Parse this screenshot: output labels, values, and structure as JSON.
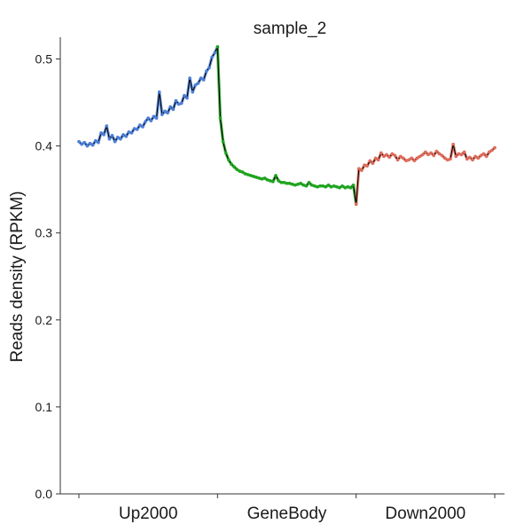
{
  "chart_data": {
    "type": "line",
    "title": "sample_2",
    "ylabel": "Reads density (RPKM)",
    "xlabel": "",
    "ylim": [
      0,
      0.5
    ],
    "yticks": [
      0.0,
      0.1,
      0.2,
      0.3,
      0.4,
      0.5
    ],
    "ytick_labels": [
      "0.0",
      "0.1",
      "0.2",
      "0.3",
      "0.4",
      "0.5"
    ],
    "categories": [
      "Up2000",
      "GeneBody",
      "Down2000"
    ],
    "grid": false,
    "line_color": "#000000",
    "series": [
      {
        "segment": "Up2000",
        "color": "#4C7FD9",
        "x": [
          0,
          1,
          2,
          3,
          4,
          5,
          6,
          7,
          8,
          9,
          10,
          11,
          12,
          13,
          14,
          15,
          16,
          17,
          18,
          19,
          20,
          21,
          22,
          23,
          24,
          25,
          26,
          27,
          28,
          29,
          30,
          31,
          32,
          33,
          34,
          35,
          36,
          37,
          38,
          39,
          40,
          41,
          42,
          43,
          44,
          45,
          46,
          47,
          48,
          49,
          50
        ],
        "values": [
          0.405,
          0.402,
          0.404,
          0.4,
          0.403,
          0.401,
          0.406,
          0.404,
          0.415,
          0.413,
          0.423,
          0.408,
          0.412,
          0.405,
          0.41,
          0.408,
          0.413,
          0.411,
          0.416,
          0.415,
          0.42,
          0.419,
          0.424,
          0.422,
          0.428,
          0.432,
          0.429,
          0.434,
          0.432,
          0.462,
          0.436,
          0.44,
          0.438,
          0.445,
          0.442,
          0.452,
          0.448,
          0.449,
          0.458,
          0.455,
          0.478,
          0.462,
          0.47,
          0.472,
          0.478,
          0.476,
          0.486,
          0.49,
          0.502,
          0.507,
          0.514
        ]
      },
      {
        "segment": "GeneBody",
        "color": "#1FA51F",
        "x": [
          50,
          51,
          52,
          53,
          54,
          55,
          56,
          57,
          58,
          59,
          60,
          61,
          62,
          63,
          64,
          65,
          66,
          67,
          68,
          69,
          70,
          71,
          72,
          73,
          74,
          75,
          76,
          77,
          78,
          79,
          80,
          81,
          82,
          83,
          84,
          85,
          86,
          87,
          88,
          89,
          90,
          91,
          92,
          93,
          94,
          95,
          96,
          97,
          98,
          99,
          100
        ],
        "values": [
          0.514,
          0.432,
          0.405,
          0.392,
          0.384,
          0.379,
          0.376,
          0.373,
          0.371,
          0.37,
          0.368,
          0.367,
          0.366,
          0.365,
          0.364,
          0.363,
          0.362,
          0.363,
          0.361,
          0.36,
          0.359,
          0.366,
          0.36,
          0.358,
          0.358,
          0.357,
          0.357,
          0.356,
          0.355,
          0.356,
          0.357,
          0.355,
          0.354,
          0.358,
          0.355,
          0.354,
          0.353,
          0.354,
          0.354,
          0.353,
          0.355,
          0.353,
          0.354,
          0.353,
          0.352,
          0.354,
          0.352,
          0.353,
          0.352,
          0.355,
          0.333
        ]
      },
      {
        "segment": "Down2000",
        "color": "#E06C5C",
        "x": [
          100,
          101,
          102,
          103,
          104,
          105,
          106,
          107,
          108,
          109,
          110,
          111,
          112,
          113,
          114,
          115,
          116,
          117,
          118,
          119,
          120,
          121,
          122,
          123,
          124,
          125,
          126,
          127,
          128,
          129,
          130,
          131,
          132,
          133,
          134,
          135,
          136,
          137,
          138,
          139,
          140,
          141,
          142,
          143,
          144,
          145,
          146,
          147,
          148,
          149,
          150
        ],
        "values": [
          0.333,
          0.374,
          0.372,
          0.378,
          0.377,
          0.383,
          0.38,
          0.386,
          0.384,
          0.392,
          0.388,
          0.39,
          0.387,
          0.391,
          0.389,
          0.384,
          0.388,
          0.386,
          0.383,
          0.384,
          0.386,
          0.383,
          0.386,
          0.388,
          0.39,
          0.393,
          0.39,
          0.392,
          0.389,
          0.394,
          0.391,
          0.389,
          0.386,
          0.384,
          0.385,
          0.402,
          0.388,
          0.391,
          0.39,
          0.393,
          0.385,
          0.387,
          0.384,
          0.388,
          0.386,
          0.389,
          0.391,
          0.388,
          0.393,
          0.395,
          0.398
        ]
      }
    ]
  }
}
